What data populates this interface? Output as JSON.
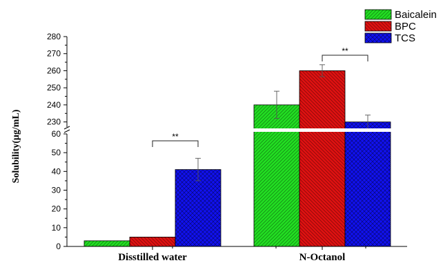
{
  "chart_data": {
    "type": "bar",
    "title": "",
    "xlabel": "",
    "ylabel": "Solubility(μg/mL)",
    "categories": [
      "Disstilled water",
      "N-Octanol"
    ],
    "series": [
      {
        "name": "Baicalein",
        "color": "#22dd22",
        "pattern": "diagonal-up",
        "values": [
          3,
          240
        ],
        "errors": [
          0,
          8
        ]
      },
      {
        "name": "BPC",
        "color": "#dd1111",
        "pattern": "diagonal-down",
        "values": [
          5,
          260
        ],
        "errors": [
          0,
          3.5
        ]
      },
      {
        "name": "TCS",
        "color": "#1111ee",
        "pattern": "crosshatch",
        "values": [
          41,
          230
        ],
        "errors": [
          6,
          4
        ]
      }
    ],
    "y_axis": {
      "broken": true,
      "lower_range": [
        0,
        60
      ],
      "lower_ticks": [
        "0",
        "10",
        "20",
        "30",
        "40",
        "50",
        "60"
      ],
      "upper_range": [
        225,
        280
      ],
      "upper_ticks": [
        "230",
        "240",
        "250",
        "260",
        "270",
        "280"
      ]
    },
    "significance": [
      {
        "category": "Disstilled water",
        "from_series": "BPC",
        "to_series": "TCS",
        "label": "**"
      },
      {
        "category": "N-Octanol",
        "from_series": "BPC",
        "to_series": "TCS",
        "label": "**"
      }
    ],
    "legend_position": "top-right",
    "grid": false
  }
}
